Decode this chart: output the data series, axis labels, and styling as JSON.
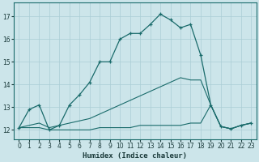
{
  "xlabel": "Humidex (Indice chaleur)",
  "bg_color": "#cce5ea",
  "grid_color": "#aacdd5",
  "line_color": "#1a6b6b",
  "x_ticks": [
    0,
    1,
    2,
    3,
    4,
    5,
    6,
    7,
    8,
    9,
    10,
    11,
    12,
    13,
    14,
    15,
    16,
    17,
    18,
    19,
    20,
    21,
    22,
    23
  ],
  "ylim": [
    11.6,
    17.6
  ],
  "xlim": [
    -0.5,
    23.5
  ],
  "yticks": [
    12,
    13,
    14,
    15,
    16,
    17
  ],
  "line1_x": [
    0,
    1,
    2,
    3,
    4,
    5,
    6,
    7,
    8,
    9,
    10,
    11,
    12,
    13,
    14,
    15,
    16,
    17,
    18,
    19,
    20,
    21,
    22,
    23
  ],
  "line1_y": [
    12.1,
    12.9,
    13.1,
    12.0,
    12.2,
    13.1,
    13.55,
    14.1,
    15.0,
    15.0,
    16.0,
    16.25,
    16.25,
    16.65,
    17.1,
    16.85,
    16.5,
    16.65,
    15.3,
    13.1,
    12.15,
    12.05,
    12.2,
    12.3
  ],
  "line2_x": [
    0,
    1,
    2,
    3,
    4,
    5,
    6,
    7,
    8,
    9,
    10,
    11,
    12,
    13,
    14,
    15,
    16,
    17,
    18,
    19,
    20,
    21,
    22,
    23
  ],
  "line2_y": [
    12.1,
    12.1,
    12.1,
    12.0,
    12.0,
    12.0,
    12.0,
    12.0,
    12.1,
    12.1,
    12.1,
    12.1,
    12.2,
    12.2,
    12.2,
    12.2,
    12.2,
    12.3,
    12.3,
    13.1,
    12.15,
    12.05,
    12.2,
    12.3
  ],
  "line3_x": [
    0,
    1,
    2,
    3,
    4,
    5,
    6,
    7,
    8,
    9,
    10,
    11,
    12,
    13,
    14,
    15,
    16,
    17,
    18,
    19,
    20,
    21,
    22,
    23
  ],
  "line3_y": [
    12.1,
    12.2,
    12.3,
    12.1,
    12.2,
    12.3,
    12.4,
    12.5,
    12.7,
    12.9,
    13.1,
    13.3,
    13.5,
    13.7,
    13.9,
    14.1,
    14.3,
    14.2,
    14.2,
    13.1,
    12.15,
    12.05,
    12.2,
    12.3
  ]
}
